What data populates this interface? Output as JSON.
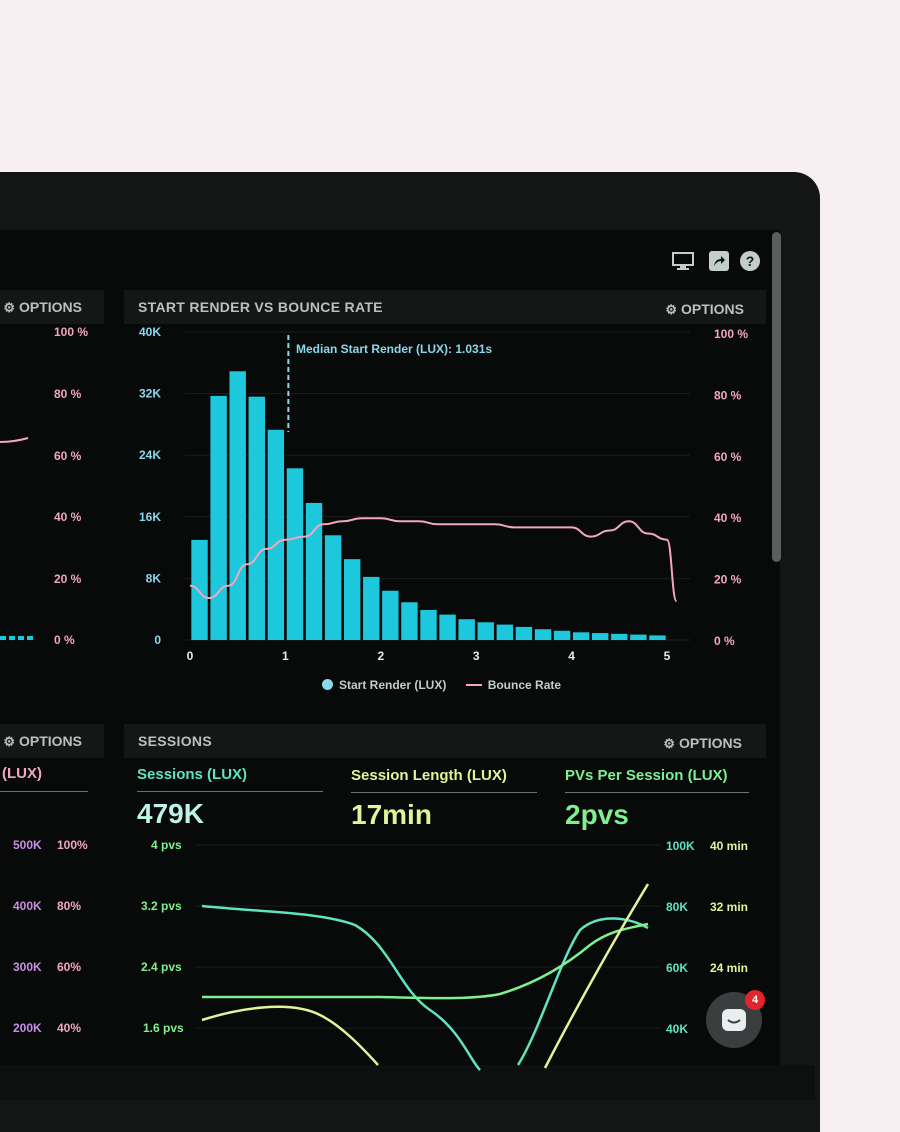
{
  "toolbar": {
    "icons": [
      "monitor-icon",
      "share-icon",
      "help-icon"
    ]
  },
  "left_panel_top": {
    "options_label": "OPTIONS",
    "right_axis_ticks": [
      "100 %",
      "80 %",
      "60 %",
      "40 %",
      "20 %",
      "0 %"
    ]
  },
  "start_render_panel": {
    "title": "START RENDER VS BOUNCE RATE",
    "options_label": "OPTIONS",
    "annotation": "Median Start Render (LUX): 1.031s",
    "left_axis_ticks": [
      "40K",
      "32K",
      "24K",
      "16K",
      "8K",
      "0"
    ],
    "right_axis_ticks": [
      "100 %",
      "80 %",
      "60 %",
      "40 %",
      "20 %",
      "0 %"
    ],
    "x_ticks": [
      "0",
      "1",
      "2",
      "3",
      "4",
      "5"
    ],
    "legend": [
      "Start Render (LUX)",
      "Bounce Rate"
    ]
  },
  "left_panel_bottom": {
    "options_label": "OPTIONS",
    "heading": "(LUX)",
    "axis_ticks_a": [
      "500K",
      "400K",
      "300K",
      "200K"
    ],
    "axis_ticks_b": [
      "100%",
      "80%",
      "60%",
      "40%"
    ]
  },
  "sessions_panel": {
    "title": "SESSIONS",
    "options_label": "OPTIONS",
    "stats": [
      {
        "label": "Sessions (LUX)",
        "value": "479K"
      },
      {
        "label": "Session Length (LUX)",
        "value": "17min"
      },
      {
        "label": "PVs Per Session (LUX)",
        "value": "2pvs"
      }
    ],
    "left_axis_ticks": [
      "4 pvs",
      "3.2 pvs",
      "2.4 pvs",
      "1.6 pvs"
    ],
    "right_axis_ticks_a": [
      "100K",
      "80K",
      "60K",
      "40K"
    ],
    "right_axis_ticks_b": [
      "40 min",
      "32 min",
      "24 min"
    ]
  },
  "chat": {
    "badge_count": "4"
  },
  "colors": {
    "bar": "#1ec8dc",
    "bounce_line": "#f2a6c0",
    "axis_pink": "#f2a6c0",
    "axis_blue": "#8ad8ec",
    "sessions_teal": "#5fe3c0",
    "session_length_yellow": "#e2f39a",
    "pvs_green": "#7ef08e"
  },
  "chart_data": {
    "type": "bar",
    "xlabel": "",
    "ylabel": "",
    "xlim": [
      0,
      5
    ],
    "ylim": [
      0,
      40000
    ],
    "y2lim": [
      0,
      100
    ],
    "bin_centers": [
      0.2,
      0.4,
      0.6,
      0.8,
      1.0,
      1.2,
      1.4,
      1.6,
      1.8,
      2.0,
      2.2,
      2.4,
      2.6,
      2.8,
      3.0,
      3.2,
      3.4,
      3.6,
      3.8,
      4.0,
      4.2,
      4.4,
      4.6,
      4.8,
      5.0
    ],
    "series": [
      {
        "name": "Start Render (LUX)",
        "type": "bar",
        "values": [
          13000,
          31700,
          34900,
          31600,
          27300,
          22300,
          17800,
          13600,
          10500,
          8200,
          6400,
          4900,
          3900,
          3300,
          2700,
          2300,
          2000,
          1700,
          1400,
          1200,
          1000,
          900,
          800,
          700,
          600
        ]
      },
      {
        "name": "Bounce Rate",
        "type": "line",
        "x": [
          0.0,
          0.2,
          0.4,
          0.6,
          0.8,
          1.0,
          1.2,
          1.4,
          1.6,
          1.8,
          2.0,
          2.2,
          2.4,
          2.6,
          2.8,
          3.0,
          3.2,
          3.4,
          3.6,
          3.8,
          4.0,
          4.2,
          4.4,
          4.6,
          4.8,
          5.0,
          5.1
        ],
        "values": [
          18,
          14,
          18,
          25,
          30,
          33,
          34,
          38,
          39,
          40,
          40,
          39,
          39,
          38,
          38,
          38,
          38,
          37,
          37,
          37,
          37,
          34,
          36,
          39,
          35,
          33,
          13
        ]
      }
    ],
    "median_marker": {
      "x": 1.031,
      "label": "Median Start Render (LUX): 1.031s"
    }
  }
}
